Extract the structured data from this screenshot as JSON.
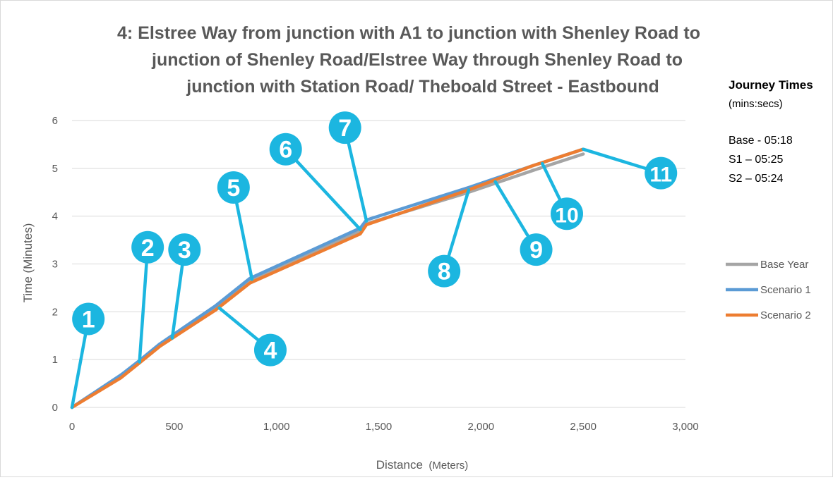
{
  "chart_data": {
    "type": "line",
    "title_lines": [
      "4: Elstree Way from junction with A1 to junction with Shenley Road to",
      "junction of Shenley Road/Elstree Way through Shenley Road to",
      "junction with Station Road/ Theboald Street - Eastbound"
    ],
    "xlabel_main": "Distance",
    "xlabel_unit": "(Meters)",
    "ylabel": "Time (Minutes)",
    "xlim": [
      0,
      3000
    ],
    "ylim": [
      0,
      6
    ],
    "x_ticks": [
      0,
      500,
      1000,
      1500,
      2000,
      2500,
      3000
    ],
    "x_tick_labels": [
      "0",
      "500",
      "1,000",
      "1,500",
      "2,000",
      "2,500",
      "3,000"
    ],
    "y_ticks": [
      0,
      1,
      2,
      3,
      4,
      5,
      6
    ],
    "y_tick_labels": [
      "0",
      "1",
      "2",
      "3",
      "4",
      "5",
      "6"
    ],
    "grid": "horizontal",
    "legend_position": "right",
    "series": [
      {
        "name": "Base Year",
        "color": "#a5a5a5",
        "points": [
          [
            0,
            0
          ],
          [
            240,
            0.68
          ],
          [
            330,
            0.95
          ],
          [
            430,
            1.3
          ],
          [
            700,
            2.05
          ],
          [
            870,
            2.65
          ],
          [
            1410,
            3.68
          ],
          [
            1440,
            3.84
          ],
          [
            1940,
            4.5
          ],
          [
            2250,
            4.95
          ],
          [
            2500,
            5.3
          ]
        ]
      },
      {
        "name": "Scenario 1",
        "color": "#5b9bd5",
        "points": [
          [
            0,
            0
          ],
          [
            240,
            0.68
          ],
          [
            330,
            0.98
          ],
          [
            430,
            1.33
          ],
          [
            700,
            2.12
          ],
          [
            870,
            2.7
          ],
          [
            1410,
            3.75
          ],
          [
            1440,
            3.92
          ],
          [
            1940,
            4.6
          ],
          [
            2250,
            5.05
          ],
          [
            2500,
            5.4
          ]
        ]
      },
      {
        "name": "Scenario 2",
        "color": "#ed7d31",
        "points": [
          [
            0,
            0
          ],
          [
            240,
            0.62
          ],
          [
            330,
            0.93
          ],
          [
            430,
            1.28
          ],
          [
            700,
            2.03
          ],
          [
            870,
            2.6
          ],
          [
            1410,
            3.63
          ],
          [
            1440,
            3.82
          ],
          [
            1940,
            4.55
          ],
          [
            2250,
            5.05
          ],
          [
            2500,
            5.4
          ]
        ]
      }
    ],
    "callouts": [
      {
        "label": "1",
        "pos": [
          80,
          1.85
        ],
        "target": [
          0,
          0
        ]
      },
      {
        "label": "2",
        "pos": [
          370,
          3.35
        ],
        "target": [
          330,
          0.95
        ]
      },
      {
        "label": "3",
        "pos": [
          550,
          3.3
        ],
        "target": [
          490,
          1.45
        ]
      },
      {
        "label": "4",
        "pos": [
          970,
          1.2
        ],
        "target": [
          720,
          2.08
        ]
      },
      {
        "label": "5",
        "pos": [
          790,
          4.6
        ],
        "target": [
          880,
          2.68
        ]
      },
      {
        "label": "6",
        "pos": [
          1045,
          5.4
        ],
        "target": [
          1410,
          3.72
        ]
      },
      {
        "label": "7",
        "pos": [
          1335,
          5.85
        ],
        "target": [
          1440,
          3.9
        ]
      },
      {
        "label": "8",
        "pos": [
          1820,
          2.85
        ],
        "target": [
          1940,
          4.55
        ]
      },
      {
        "label": "9",
        "pos": [
          2270,
          3.3
        ],
        "target": [
          2070,
          4.72
        ]
      },
      {
        "label": "10",
        "pos": [
          2420,
          4.05
        ],
        "target": [
          2300,
          5.1
        ]
      },
      {
        "label": "11",
        "pos": [
          2880,
          4.9
        ],
        "target": [
          2500,
          5.4
        ]
      }
    ]
  },
  "side_panel": {
    "heading": "Journey Times",
    "subheading": "(mins:secs)",
    "lines": [
      "Base - 05:18",
      "S1 – 05:25",
      "S2 – 05:24"
    ]
  },
  "callout_color": "#1cb6e0"
}
